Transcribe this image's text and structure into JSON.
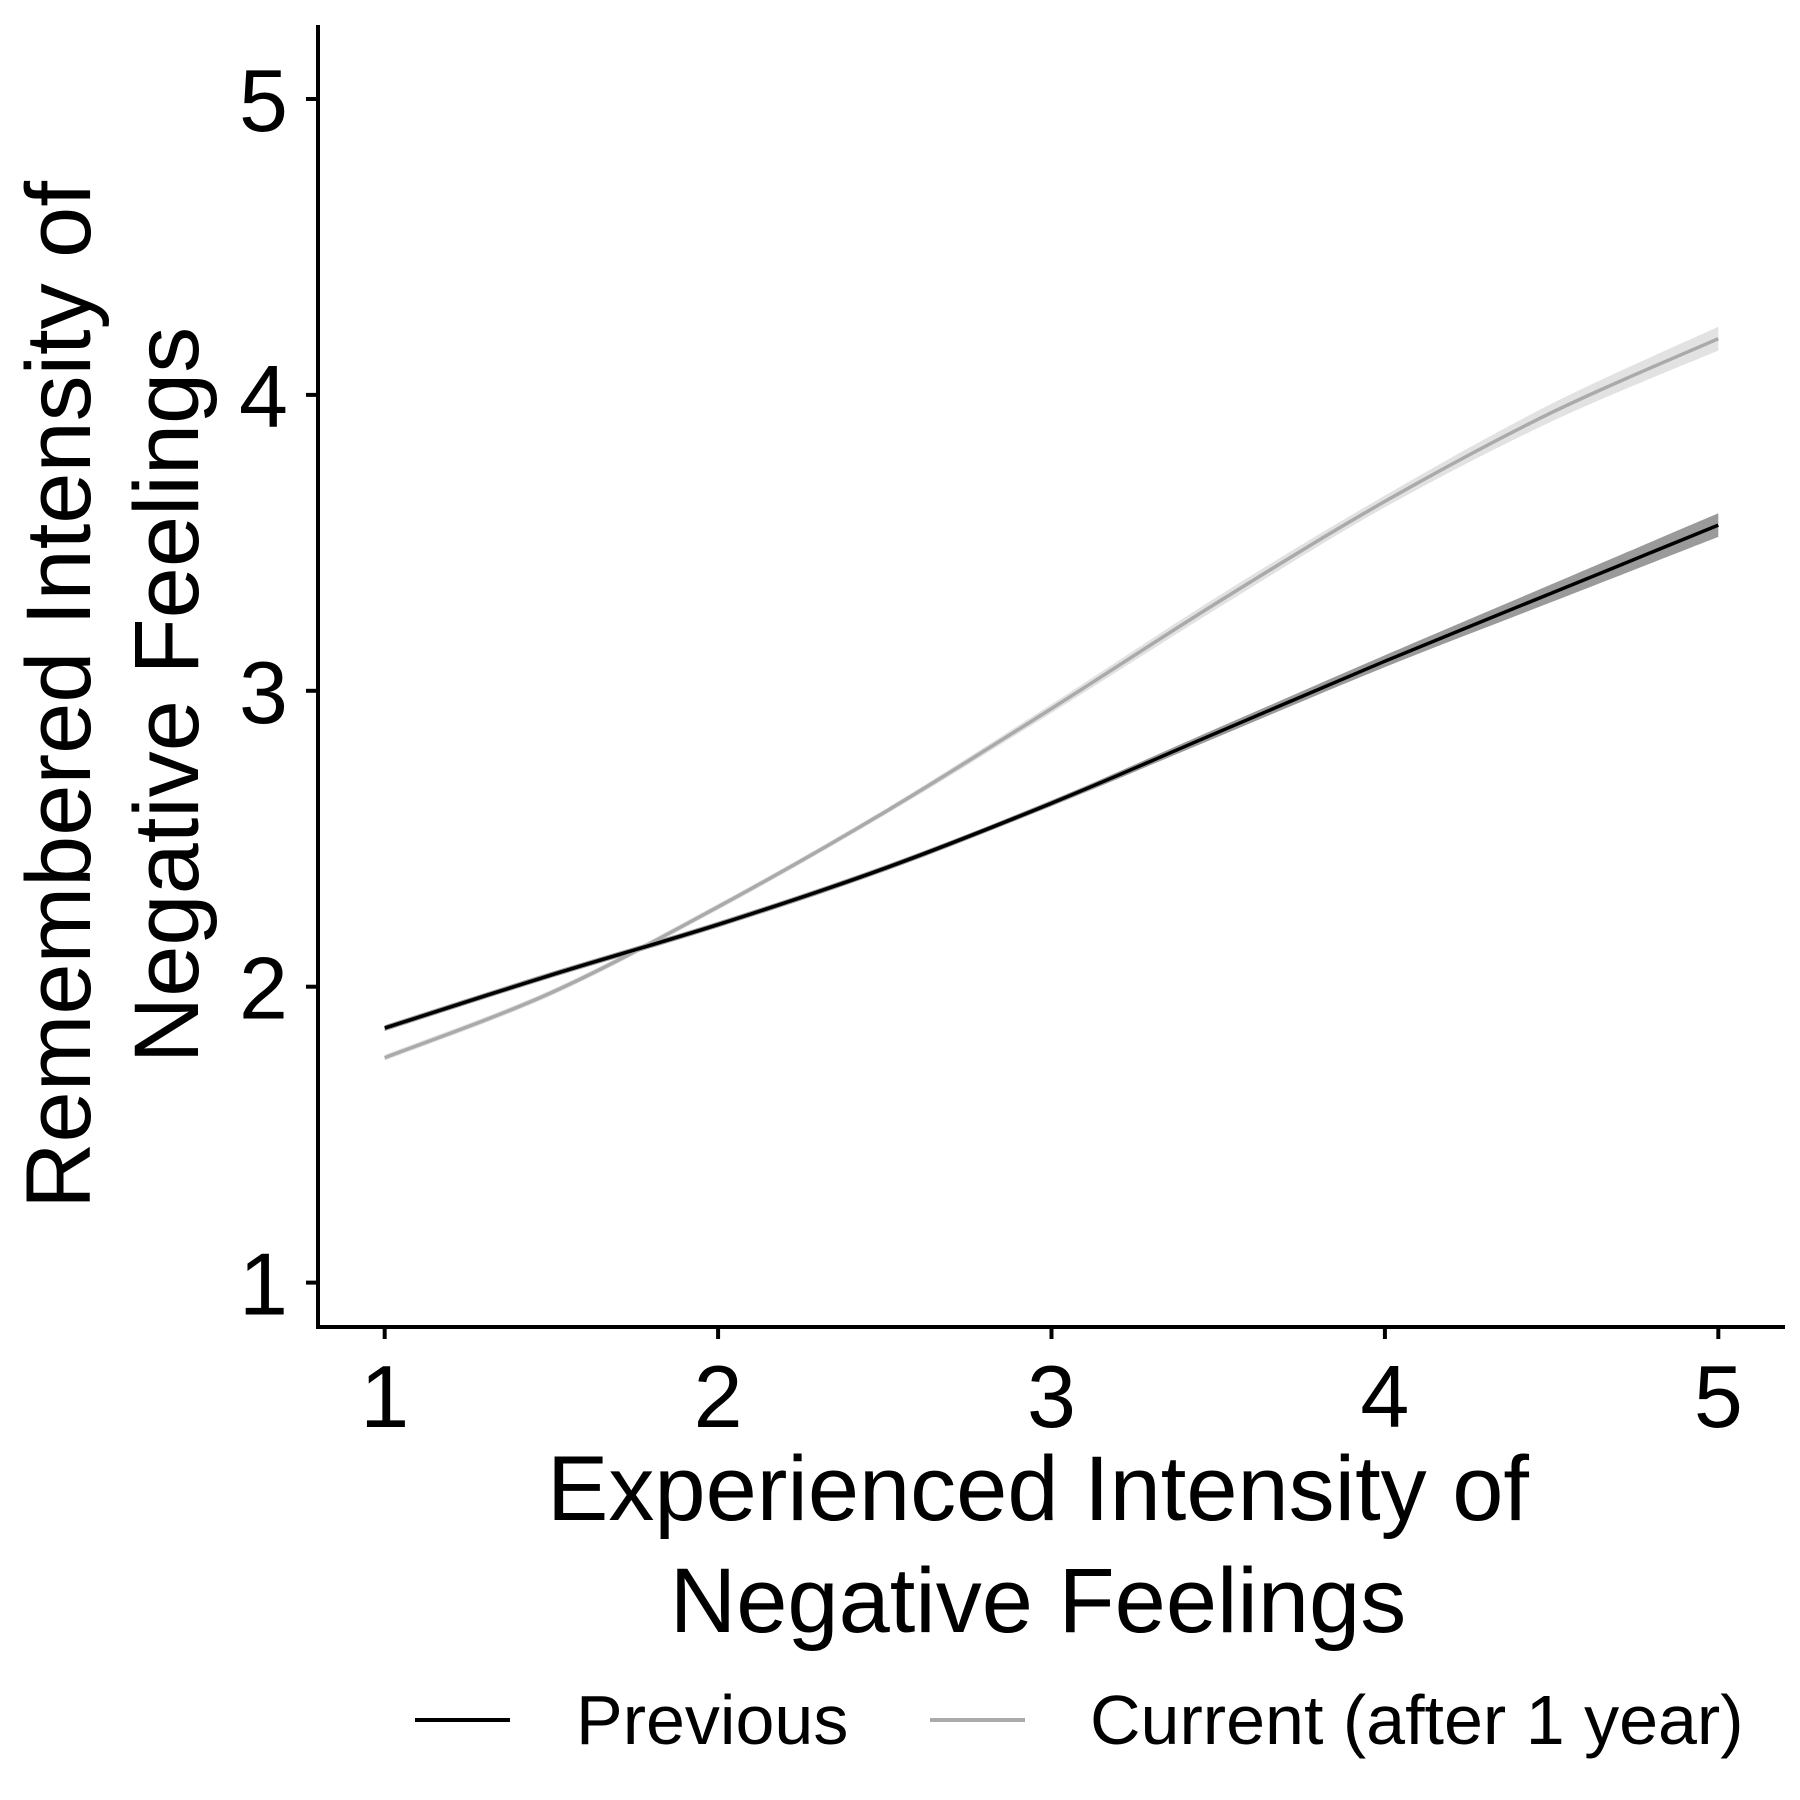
{
  "chart_data": {
    "type": "line",
    "xlabel_lines": [
      "Experienced Intensity of",
      "Negative Feelings"
    ],
    "ylabel_lines": [
      "Remembered Intensity of",
      "Negative Feelings"
    ],
    "xlim": [
      0.8,
      5.2
    ],
    "ylim": [
      0.85,
      5.25
    ],
    "xticks": [
      1,
      2,
      3,
      4,
      5
    ],
    "yticks": [
      1,
      2,
      3,
      4,
      5
    ],
    "grid": false,
    "legend_position": "bottom",
    "series": [
      {
        "name": "Previous",
        "color": "#000000",
        "band_color": "#9a9a9a",
        "x": [
          1,
          1.5,
          2,
          2.5,
          3,
          3.5,
          4,
          4.5,
          5
        ],
        "y": [
          1.86,
          2.04,
          2.21,
          2.4,
          2.62,
          2.86,
          3.1,
          3.33,
          3.56
        ],
        "ci_half_width": [
          0.01,
          0.01,
          0.01,
          0.01,
          0.01,
          0.015,
          0.02,
          0.03,
          0.04
        ]
      },
      {
        "name": "Current (after 1 year)",
        "color": "#aaaaaa",
        "band_color": "#e2e2e2",
        "x": [
          1,
          1.5,
          2,
          2.5,
          3,
          3.5,
          4,
          4.5,
          5
        ],
        "y": [
          1.76,
          1.98,
          2.27,
          2.59,
          2.94,
          3.3,
          3.64,
          3.94,
          4.19
        ],
        "ci_half_width": [
          0.01,
          0.01,
          0.01,
          0.01,
          0.015,
          0.02,
          0.02,
          0.03,
          0.04
        ]
      }
    ]
  }
}
